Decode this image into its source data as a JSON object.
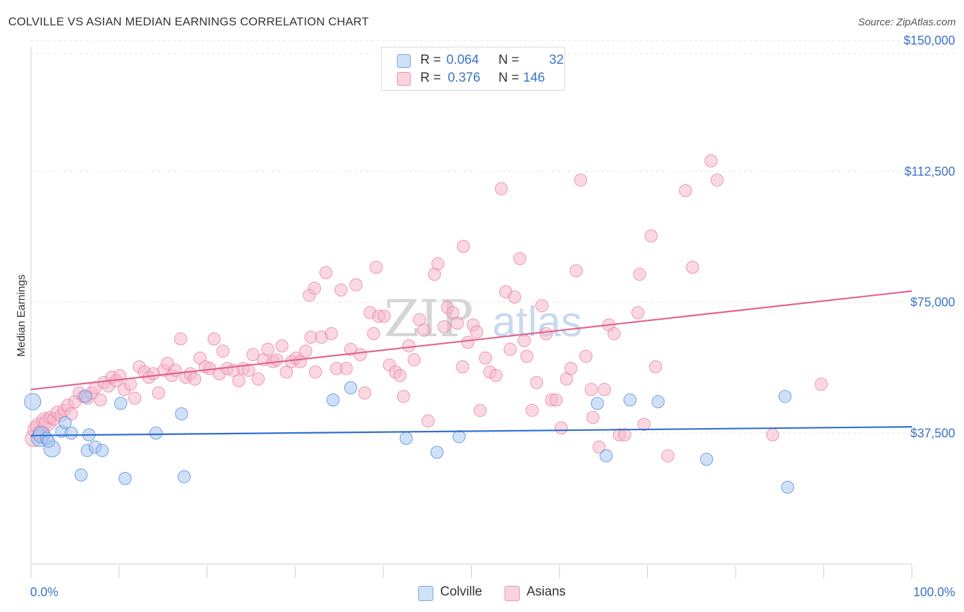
{
  "header": {
    "title": "COLVILLE VS ASIAN MEDIAN EARNINGS CORRELATION CHART",
    "source": "Source: ZipAtlas.com"
  },
  "legend": {
    "rows": [
      {
        "r_label": "R =",
        "r_value": "0.064",
        "n_label": "N =",
        "n_value": "32",
        "color": "#a9c6f0"
      },
      {
        "r_label": "R =",
        "r_value": "0.376",
        "n_label": "N =",
        "n_value": "146",
        "color": "#f5b8cb"
      }
    ]
  },
  "bottom_legend": [
    {
      "label": "Colville",
      "color": "#a9c6f0"
    },
    {
      "label": "Asians",
      "color": "#f5b8cb"
    }
  ],
  "watermark": {
    "zip": "ZIP",
    "atlas": "atlas"
  },
  "chart_data": {
    "type": "scatter",
    "title": "COLVILLE VS ASIAN MEDIAN EARNINGS CORRELATION CHART",
    "xlabel": "",
    "ylabel": "Median Earnings",
    "xlim": [
      0,
      100
    ],
    "ylim": [
      0,
      153500
    ],
    "x_tick_labels": [
      "0.0%",
      "100.0%"
    ],
    "y_ticks": [
      37500,
      75000,
      112500,
      150000
    ],
    "y_tick_labels": [
      "$37,500",
      "$75,000",
      "$112,500",
      "$150,000"
    ],
    "grid": true,
    "colors": {
      "colville": "#4a86d8",
      "colville_fill": "#a9c6f0",
      "asians": "#e8779f",
      "asians_fill": "#f5b8cb",
      "tick_text": "#3b73c9"
    },
    "series": [
      {
        "name": "Colville",
        "trend": {
          "x": [
            0,
            100
          ],
          "y": [
            36800,
            39300
          ]
        },
        "points": [
          [
            0.2,
            46500
          ],
          [
            1.0,
            36000
          ],
          [
            1.2,
            37000
          ],
          [
            2.4,
            33000
          ],
          [
            3.5,
            38000
          ],
          [
            3.9,
            40500
          ],
          [
            4.6,
            37500
          ],
          [
            5.7,
            25500
          ],
          [
            6.4,
            32500
          ],
          [
            6.6,
            37000
          ],
          [
            7.3,
            33500
          ],
          [
            8.1,
            32500
          ],
          [
            10.2,
            46000
          ],
          [
            10.7,
            24500
          ],
          [
            14.2,
            37500
          ],
          [
            17.1,
            43000
          ],
          [
            17.4,
            25000
          ],
          [
            34.3,
            47000
          ],
          [
            36.3,
            50500
          ],
          [
            42.6,
            36000
          ],
          [
            46.1,
            32000
          ],
          [
            48.6,
            36500
          ],
          [
            64.3,
            46000
          ],
          [
            65.3,
            31000
          ],
          [
            68.0,
            47000
          ],
          [
            71.2,
            46500
          ],
          [
            76.7,
            30000
          ],
          [
            85.6,
            48000
          ],
          [
            85.9,
            22000
          ],
          [
            1.8,
            36000
          ],
          [
            2.0,
            35200
          ],
          [
            6.2,
            48000
          ]
        ]
      },
      {
        "name": "Asians",
        "trend": {
          "x": [
            0,
            100
          ],
          "y": [
            50000,
            78200
          ]
        },
        "points": [
          [
            0.3,
            36000
          ],
          [
            0.6,
            38500
          ],
          [
            0.9,
            39500
          ],
          [
            1.2,
            37500
          ],
          [
            1.6,
            41000
          ],
          [
            1.9,
            40500
          ],
          [
            2.2,
            42000
          ],
          [
            2.6,
            41500
          ],
          [
            3.0,
            43500
          ],
          [
            3.4,
            42500
          ],
          [
            3.8,
            44000
          ],
          [
            4.2,
            45500
          ],
          [
            4.6,
            43000
          ],
          [
            5.0,
            46500
          ],
          [
            5.5,
            49000
          ],
          [
            6.0,
            48000
          ],
          [
            6.4,
            47500
          ],
          [
            6.9,
            49000
          ],
          [
            7.3,
            50500
          ],
          [
            7.9,
            47000
          ],
          [
            8.3,
            52000
          ],
          [
            8.8,
            51000
          ],
          [
            9.2,
            53500
          ],
          [
            9.7,
            52500
          ],
          [
            10.1,
            54000
          ],
          [
            10.6,
            50000
          ],
          [
            11.3,
            51500
          ],
          [
            11.8,
            47500
          ],
          [
            12.3,
            56500
          ],
          [
            12.9,
            55000
          ],
          [
            13.4,
            53500
          ],
          [
            13.9,
            54500
          ],
          [
            14.5,
            49000
          ],
          [
            15.1,
            55500
          ],
          [
            15.5,
            57500
          ],
          [
            16.0,
            54000
          ],
          [
            16.4,
            55500
          ],
          [
            17.0,
            64500
          ],
          [
            17.6,
            53500
          ],
          [
            18.1,
            54500
          ],
          [
            18.6,
            53000
          ],
          [
            19.2,
            59000
          ],
          [
            19.8,
            56500
          ],
          [
            20.3,
            56000
          ],
          [
            20.8,
            64500
          ],
          [
            21.4,
            54500
          ],
          [
            21.8,
            61000
          ],
          [
            22.3,
            56000
          ],
          [
            23.0,
            55500
          ],
          [
            23.6,
            52500
          ],
          [
            24.1,
            56000
          ],
          [
            24.7,
            55500
          ],
          [
            25.2,
            60000
          ],
          [
            25.8,
            53000
          ],
          [
            26.4,
            58500
          ],
          [
            26.9,
            61500
          ],
          [
            27.5,
            58000
          ],
          [
            27.9,
            58500
          ],
          [
            28.5,
            62500
          ],
          [
            29.0,
            55000
          ],
          [
            29.6,
            58000
          ],
          [
            30.1,
            59000
          ],
          [
            30.6,
            58000
          ],
          [
            31.2,
            61000
          ],
          [
            31.8,
            65000
          ],
          [
            32.3,
            55000
          ],
          [
            31.6,
            77000
          ],
          [
            32.2,
            79000
          ],
          [
            33.0,
            65000
          ],
          [
            33.5,
            83500
          ],
          [
            34.1,
            66000
          ],
          [
            34.7,
            56000
          ],
          [
            35.2,
            78500
          ],
          [
            35.8,
            56000
          ],
          [
            36.3,
            61500
          ],
          [
            36.9,
            80000
          ],
          [
            37.4,
            60000
          ],
          [
            37.9,
            49000
          ],
          [
            38.5,
            72000
          ],
          [
            38.9,
            66000
          ],
          [
            39.5,
            71000
          ],
          [
            40.1,
            71000
          ],
          [
            39.2,
            85000
          ],
          [
            40.7,
            57000
          ],
          [
            41.4,
            55000
          ],
          [
            41.9,
            54000
          ],
          [
            42.3,
            48000
          ],
          [
            42.9,
            62500
          ],
          [
            43.5,
            58500
          ],
          [
            44.1,
            70000
          ],
          [
            44.6,
            67000
          ],
          [
            45.1,
            41000
          ],
          [
            45.8,
            83000
          ],
          [
            46.2,
            86000
          ],
          [
            46.9,
            68000
          ],
          [
            47.3,
            73500
          ],
          [
            47.9,
            72000
          ],
          [
            48.4,
            69000
          ],
          [
            49.0,
            56500
          ],
          [
            49.6,
            63500
          ],
          [
            50.2,
            68500
          ],
          [
            50.6,
            66500
          ],
          [
            49.1,
            91000
          ],
          [
            51.0,
            44000
          ],
          [
            51.6,
            59000
          ],
          [
            52.1,
            55000
          ],
          [
            52.8,
            54000
          ],
          [
            53.4,
            107500
          ],
          [
            53.9,
            78000
          ],
          [
            54.4,
            61500
          ],
          [
            54.9,
            76500
          ],
          [
            55.5,
            87500
          ],
          [
            56.0,
            64000
          ],
          [
            56.3,
            59500
          ],
          [
            56.9,
            44000
          ],
          [
            57.4,
            52000
          ],
          [
            58.0,
            74000
          ],
          [
            58.5,
            66000
          ],
          [
            59.1,
            47000
          ],
          [
            59.6,
            47000
          ],
          [
            60.2,
            39000
          ],
          [
            60.8,
            53000
          ],
          [
            61.3,
            56000
          ],
          [
            61.9,
            84000
          ],
          [
            62.4,
            110000
          ],
          [
            63.0,
            59500
          ],
          [
            63.6,
            50000
          ],
          [
            63.8,
            42000
          ],
          [
            64.5,
            33500
          ],
          [
            65.1,
            50000
          ],
          [
            65.6,
            68500
          ],
          [
            66.2,
            66000
          ],
          [
            66.8,
            37000
          ],
          [
            67.4,
            37000
          ],
          [
            68.9,
            72000
          ],
          [
            69.1,
            83000
          ],
          [
            69.6,
            40000
          ],
          [
            70.4,
            94000
          ],
          [
            70.9,
            56500
          ],
          [
            72.3,
            31000
          ],
          [
            74.3,
            107000
          ],
          [
            75.1,
            85000
          ],
          [
            77.2,
            115500
          ],
          [
            77.9,
            110000
          ],
          [
            84.2,
            37000
          ],
          [
            89.7,
            51500
          ]
        ]
      }
    ]
  }
}
